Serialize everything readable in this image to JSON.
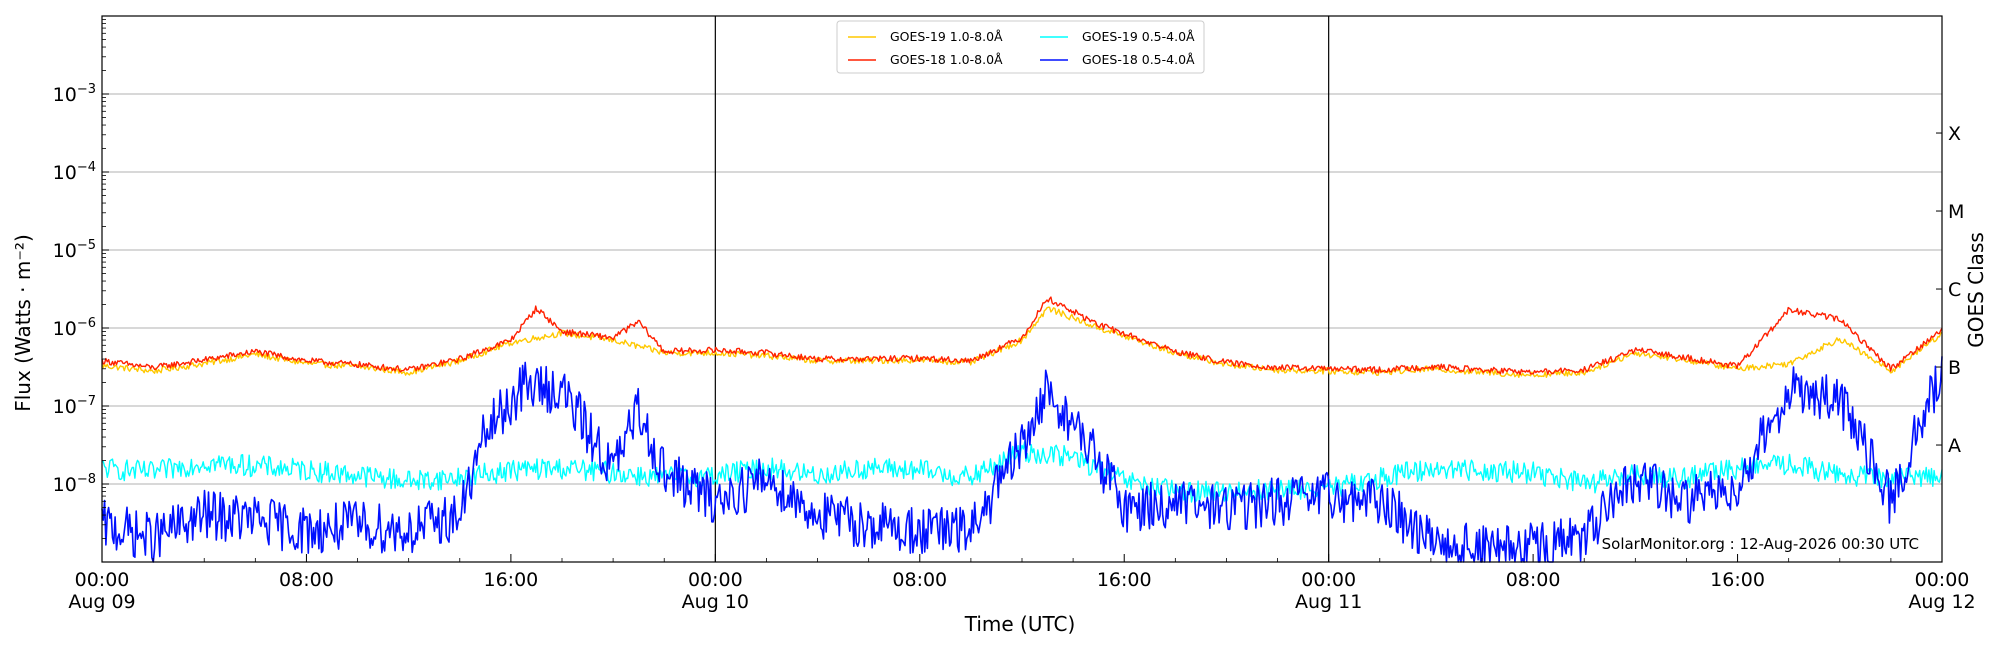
{
  "chart_data": {
    "type": "line",
    "title": "",
    "xlabel": "Time (UTC)",
    "ylabel": "Flux (Watts · m⁻²)",
    "y2label": "GOES Class",
    "yscale": "log",
    "ylim": [
      1e-09,
      0.01
    ],
    "xlim": [
      "2026-08-09T00:00",
      "2026-08-12T00:00"
    ],
    "grid": "horizontal",
    "legend_position": "top-center",
    "y_ticks": [
      {
        "value": 1e-08,
        "base": "10",
        "exp": "−8"
      },
      {
        "value": 1e-07,
        "base": "10",
        "exp": "−7"
      },
      {
        "value": 1e-06,
        "base": "10",
        "exp": "−6"
      },
      {
        "value": 1e-05,
        "base": "10",
        "exp": "−5"
      },
      {
        "value": 0.0001,
        "base": "10",
        "exp": "−4"
      },
      {
        "value": 0.001,
        "base": "10",
        "exp": "−3"
      }
    ],
    "x_ticks": [
      {
        "time": "2026-08-09T00:00",
        "line1": "00:00",
        "line2": "Aug 09"
      },
      {
        "time": "2026-08-09T08:00",
        "line1": "08:00",
        "line2": ""
      },
      {
        "time": "2026-08-09T16:00",
        "line1": "16:00",
        "line2": ""
      },
      {
        "time": "2026-08-10T00:00",
        "line1": "00:00",
        "line2": "Aug 10"
      },
      {
        "time": "2026-08-10T08:00",
        "line1": "08:00",
        "line2": ""
      },
      {
        "time": "2026-08-10T16:00",
        "line1": "16:00",
        "line2": ""
      },
      {
        "time": "2026-08-11T00:00",
        "line1": "00:00",
        "line2": "Aug 11"
      },
      {
        "time": "2026-08-11T08:00",
        "line1": "08:00",
        "line2": ""
      },
      {
        "time": "2026-08-11T16:00",
        "line1": "16:00",
        "line2": ""
      },
      {
        "time": "2026-08-12T00:00",
        "line1": "00:00",
        "line2": "Aug 12"
      }
    ],
    "day_dividers": [
      "2026-08-10T00:00",
      "2026-08-11T00:00"
    ],
    "goes_classes": [
      {
        "label": "A",
        "value": 3.16e-08
      },
      {
        "label": "B",
        "value": 3.16e-07
      },
      {
        "label": "C",
        "value": 3.16e-06
      },
      {
        "label": "M",
        "value": 3.16e-05
      },
      {
        "label": "X",
        "value": 0.000316
      }
    ],
    "series": [
      {
        "name": "GOES-19 1.0-8.0Å",
        "color": "#ffc800",
        "points": [
          [
            "2026-08-09T00:00",
            3.3e-07
          ],
          [
            "2026-08-09T02:00",
            2.8e-07
          ],
          [
            "2026-08-09T04:00",
            3.5e-07
          ],
          [
            "2026-08-09T06:00",
            4.6e-07
          ],
          [
            "2026-08-09T08:00",
            3.5e-07
          ],
          [
            "2026-08-09T10:00",
            3.2e-07
          ],
          [
            "2026-08-09T12:00",
            2.7e-07
          ],
          [
            "2026-08-09T14:00",
            3.8e-07
          ],
          [
            "2026-08-09T16:00",
            6.5e-07
          ],
          [
            "2026-08-09T18:00",
            8.6e-07
          ],
          [
            "2026-08-09T20:00",
            7e-07
          ],
          [
            "2026-08-09T22:00",
            4.8e-07
          ],
          [
            "2026-08-10T00:00",
            4.8e-07
          ],
          [
            "2026-08-10T02:00",
            4.4e-07
          ],
          [
            "2026-08-10T04:00",
            3.8e-07
          ],
          [
            "2026-08-10T06:00",
            3.8e-07
          ],
          [
            "2026-08-10T08:00",
            3.9e-07
          ],
          [
            "2026-08-10T10:00",
            3.6e-07
          ],
          [
            "2026-08-10T12:00",
            7e-07
          ],
          [
            "2026-08-10T13:00",
            1.8e-06
          ],
          [
            "2026-08-10T15:00",
            1e-06
          ],
          [
            "2026-08-10T18:00",
            4.8e-07
          ],
          [
            "2026-08-10T20:00",
            3.4e-07
          ],
          [
            "2026-08-10T22:00",
            2.9e-07
          ],
          [
            "2026-08-11T00:00",
            2.8e-07
          ],
          [
            "2026-08-11T02:00",
            2.7e-07
          ],
          [
            "2026-08-11T04:00",
            3e-07
          ],
          [
            "2026-08-11T06:00",
            2.7e-07
          ],
          [
            "2026-08-11T08:00",
            2.5e-07
          ],
          [
            "2026-08-11T10:00",
            2.7e-07
          ],
          [
            "2026-08-11T12:00",
            4.8e-07
          ],
          [
            "2026-08-11T14:00",
            3.9e-07
          ],
          [
            "2026-08-11T16:00",
            3e-07
          ],
          [
            "2026-08-11T18:00",
            3.5e-07
          ],
          [
            "2026-08-11T20:00",
            7.3e-07
          ],
          [
            "2026-08-11T22:00",
            2.8e-07
          ],
          [
            "2026-08-12T00:00",
            8.5e-07
          ]
        ]
      },
      {
        "name": "GOES-18 1.0-8.0Å",
        "color": "#ff2000",
        "points": [
          [
            "2026-08-09T00:00",
            3.8e-07
          ],
          [
            "2026-08-09T02:00",
            3.1e-07
          ],
          [
            "2026-08-09T04:00",
            3.9e-07
          ],
          [
            "2026-08-09T06:00",
            5e-07
          ],
          [
            "2026-08-09T08:00",
            3.8e-07
          ],
          [
            "2026-08-09T10:00",
            3.4e-07
          ],
          [
            "2026-08-09T12:00",
            2.9e-07
          ],
          [
            "2026-08-09T14:00",
            4e-07
          ],
          [
            "2026-08-09T16:00",
            7e-07
          ],
          [
            "2026-08-09T17:00",
            1.8e-06
          ],
          [
            "2026-08-09T18:00",
            9e-07
          ],
          [
            "2026-08-09T20:00",
            7.5e-07
          ],
          [
            "2026-08-09T21:00",
            1.2e-06
          ],
          [
            "2026-08-09T22:00",
            5e-07
          ],
          [
            "2026-08-10T00:00",
            5.2e-07
          ],
          [
            "2026-08-10T02:00",
            4.8e-07
          ],
          [
            "2026-08-10T04:00",
            4e-07
          ],
          [
            "2026-08-10T06:00",
            4e-07
          ],
          [
            "2026-08-10T08:00",
            4.1e-07
          ],
          [
            "2026-08-10T10:00",
            3.8e-07
          ],
          [
            "2026-08-10T12:00",
            7.5e-07
          ],
          [
            "2026-08-10T13:00",
            2.4e-06
          ],
          [
            "2026-08-10T15:00",
            1.1e-06
          ],
          [
            "2026-08-10T18:00",
            5e-07
          ],
          [
            "2026-08-10T20:00",
            3.6e-07
          ],
          [
            "2026-08-10T22:00",
            3.1e-07
          ],
          [
            "2026-08-11T00:00",
            3e-07
          ],
          [
            "2026-08-11T02:00",
            2.9e-07
          ],
          [
            "2026-08-11T04:00",
            3.2e-07
          ],
          [
            "2026-08-11T06:00",
            2.9e-07
          ],
          [
            "2026-08-11T08:00",
            2.7e-07
          ],
          [
            "2026-08-11T10:00",
            2.9e-07
          ],
          [
            "2026-08-11T12:00",
            5.2e-07
          ],
          [
            "2026-08-11T14:00",
            4.2e-07
          ],
          [
            "2026-08-11T16:00",
            3.2e-07
          ],
          [
            "2026-08-11T18:00",
            1.7e-06
          ],
          [
            "2026-08-11T20:00",
            1.3e-06
          ],
          [
            "2026-08-11T22:00",
            3e-07
          ],
          [
            "2026-08-12T00:00",
            9.5e-07
          ]
        ]
      },
      {
        "name": "GOES-19 0.5-4.0Å",
        "color": "#00ffff",
        "points": [
          [
            "2026-08-09T00:00",
            1.6e-08
          ],
          [
            "2026-08-09T02:00",
            1.4e-08
          ],
          [
            "2026-08-09T04:00",
            1.9e-08
          ],
          [
            "2026-08-09T06:00",
            1.7e-08
          ],
          [
            "2026-08-09T08:00",
            1.5e-08
          ],
          [
            "2026-08-09T10:00",
            1.3e-08
          ],
          [
            "2026-08-09T12:00",
            1.1e-08
          ],
          [
            "2026-08-09T14:00",
            1.2e-08
          ],
          [
            "2026-08-09T16:00",
            1.5e-08
          ],
          [
            "2026-08-09T18:00",
            1.6e-08
          ],
          [
            "2026-08-09T20:00",
            1.4e-08
          ],
          [
            "2026-08-09T22:00",
            1.2e-08
          ],
          [
            "2026-08-10T00:00",
            1.3e-08
          ],
          [
            "2026-08-10T02:00",
            1.6e-08
          ],
          [
            "2026-08-10T04:00",
            1.3e-08
          ],
          [
            "2026-08-10T06:00",
            1.6e-08
          ],
          [
            "2026-08-10T08:00",
            1.5e-08
          ],
          [
            "2026-08-10T10:00",
            1.2e-08
          ],
          [
            "2026-08-10T12:00",
            2.6e-08
          ],
          [
            "2026-08-10T14:00",
            2.2e-08
          ],
          [
            "2026-08-10T16:00",
            1.1e-08
          ],
          [
            "2026-08-10T18:00",
            8e-09
          ],
          [
            "2026-08-10T20:00",
            8e-09
          ],
          [
            "2026-08-10T22:00",
            8.5e-09
          ],
          [
            "2026-08-11T00:00",
            8.5e-09
          ],
          [
            "2026-08-11T02:00",
            1.2e-08
          ],
          [
            "2026-08-11T04:00",
            1.6e-08
          ],
          [
            "2026-08-11T06:00",
            1.5e-08
          ],
          [
            "2026-08-11T08:00",
            1.4e-08
          ],
          [
            "2026-08-11T10:00",
            1e-08
          ],
          [
            "2026-08-11T12:00",
            1.3e-08
          ],
          [
            "2026-08-11T14:00",
            1.2e-08
          ],
          [
            "2026-08-11T16:00",
            1.6e-08
          ],
          [
            "2026-08-11T18:00",
            1.8e-08
          ],
          [
            "2026-08-11T20:00",
            1.3e-08
          ],
          [
            "2026-08-11T22:00",
            1.2e-08
          ],
          [
            "2026-08-12T00:00",
            1.3e-08
          ]
        ]
      },
      {
        "name": "GOES-18 0.5-4.0Å",
        "color": "#0010ff",
        "points": [
          [
            "2026-08-09T00:00",
            3e-09
          ],
          [
            "2026-08-09T02:00",
            2e-09
          ],
          [
            "2026-08-09T04:00",
            4e-09
          ],
          [
            "2026-08-09T06:00",
            3.5e-09
          ],
          [
            "2026-08-09T08:00",
            2.5e-09
          ],
          [
            "2026-08-09T10:00",
            3e-09
          ],
          [
            "2026-08-09T12:00",
            2.5e-09
          ],
          [
            "2026-08-09T14:00",
            4e-09
          ],
          [
            "2026-08-09T15:00",
            4.5e-08
          ],
          [
            "2026-08-09T16:30",
            1.8e-07
          ],
          [
            "2026-08-09T18:00",
            1.6e-07
          ],
          [
            "2026-08-09T20:00",
            1.5e-08
          ],
          [
            "2026-08-09T21:00",
            9e-08
          ],
          [
            "2026-08-09T22:00",
            1.4e-08
          ],
          [
            "2026-08-10T00:00",
            6e-09
          ],
          [
            "2026-08-10T02:00",
            1.2e-08
          ],
          [
            "2026-08-10T04:00",
            4e-09
          ],
          [
            "2026-08-10T06:00",
            3e-09
          ],
          [
            "2026-08-10T08:00",
            2.5e-09
          ],
          [
            "2026-08-10T10:00",
            2.5e-09
          ],
          [
            "2026-08-10T12:00",
            3e-08
          ],
          [
            "2026-08-10T13:00",
            1.6e-07
          ],
          [
            "2026-08-10T15:00",
            2e-08
          ],
          [
            "2026-08-10T16:00",
            5e-09
          ],
          [
            "2026-08-10T18:00",
            5.5e-09
          ],
          [
            "2026-08-10T20:00",
            5e-09
          ],
          [
            "2026-08-10T22:00",
            6e-09
          ],
          [
            "2026-08-11T00:00",
            7e-09
          ],
          [
            "2026-08-11T02:00",
            6e-09
          ],
          [
            "2026-08-11T04:00",
            2e-09
          ],
          [
            "2026-08-11T06:00",
            1.5e-09
          ],
          [
            "2026-08-11T08:00",
            1.5e-09
          ],
          [
            "2026-08-11T10:00",
            2e-09
          ],
          [
            "2026-08-11T12:00",
            1.2e-08
          ],
          [
            "2026-08-11T14:00",
            6e-09
          ],
          [
            "2026-08-11T16:00",
            1e-08
          ],
          [
            "2026-08-11T18:00",
            1.6e-07
          ],
          [
            "2026-08-11T20:00",
            1.2e-07
          ],
          [
            "2026-08-11T22:00",
            6e-09
          ],
          [
            "2026-08-12T00:00",
            3e-07
          ]
        ]
      }
    ]
  },
  "watermark": "SolarMonitor.org : 12-Aug-2026 00:30 UTC"
}
